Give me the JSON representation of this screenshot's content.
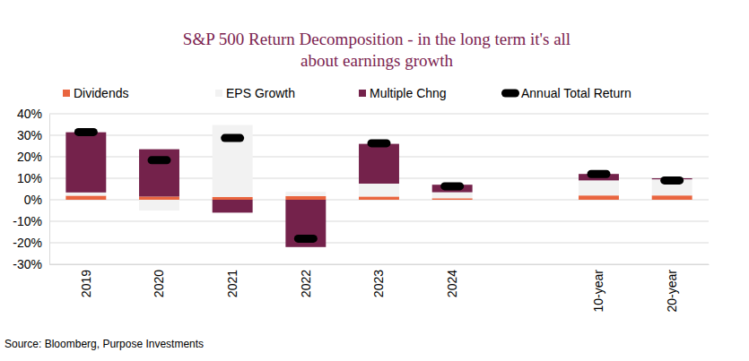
{
  "chart_data": {
    "type": "bar",
    "title": "S&P 500 Return Decomposition - in the long term it's all about earnings growth",
    "source": "Source: Bloomberg, Purpose Investments",
    "categories": [
      "2019",
      "2020",
      "2021",
      "2022",
      "2023",
      "2024",
      null,
      "10-year",
      "20-year"
    ],
    "series": [
      {
        "name": "Dividends",
        "type": "bar",
        "color": "#e9653f",
        "values": [
          1.9,
          1.5,
          1.3,
          1.7,
          1.5,
          0.7,
          null,
          2.0,
          2.0
        ]
      },
      {
        "name": "EPS Growth",
        "type": "bar",
        "color": "#f2f2f2",
        "values": [
          1.5,
          -5.0,
          33.5,
          2.0,
          6.0,
          2.8,
          null,
          7.0,
          7.5
        ]
      },
      {
        "name": "Multiple Chng",
        "type": "bar",
        "color": "#74224b",
        "values": [
          28.0,
          22.0,
          -6.0,
          -22.0,
          18.5,
          3.5,
          null,
          3.0,
          0.5
        ]
      },
      {
        "name": "Annual Total Return",
        "type": "scatter",
        "marker": "pill",
        "color": "#000000",
        "values": [
          31.5,
          18.4,
          28.7,
          -18.1,
          26.3,
          6.3,
          null,
          12.0,
          9.0
        ]
      }
    ],
    "ylim": [
      -30,
      40
    ],
    "yticks": [
      {
        "value": -30,
        "label": "-30%"
      },
      {
        "value": -20,
        "label": "-20%"
      },
      {
        "value": -10,
        "label": "-10%"
      },
      {
        "value": 0,
        "label": "0%"
      },
      {
        "value": 10,
        "label": "10%"
      },
      {
        "value": 20,
        "label": "20%"
      },
      {
        "value": 30,
        "label": "30%"
      },
      {
        "value": 40,
        "label": "40%"
      }
    ],
    "stacked": true,
    "grid": true,
    "legend": "top"
  }
}
